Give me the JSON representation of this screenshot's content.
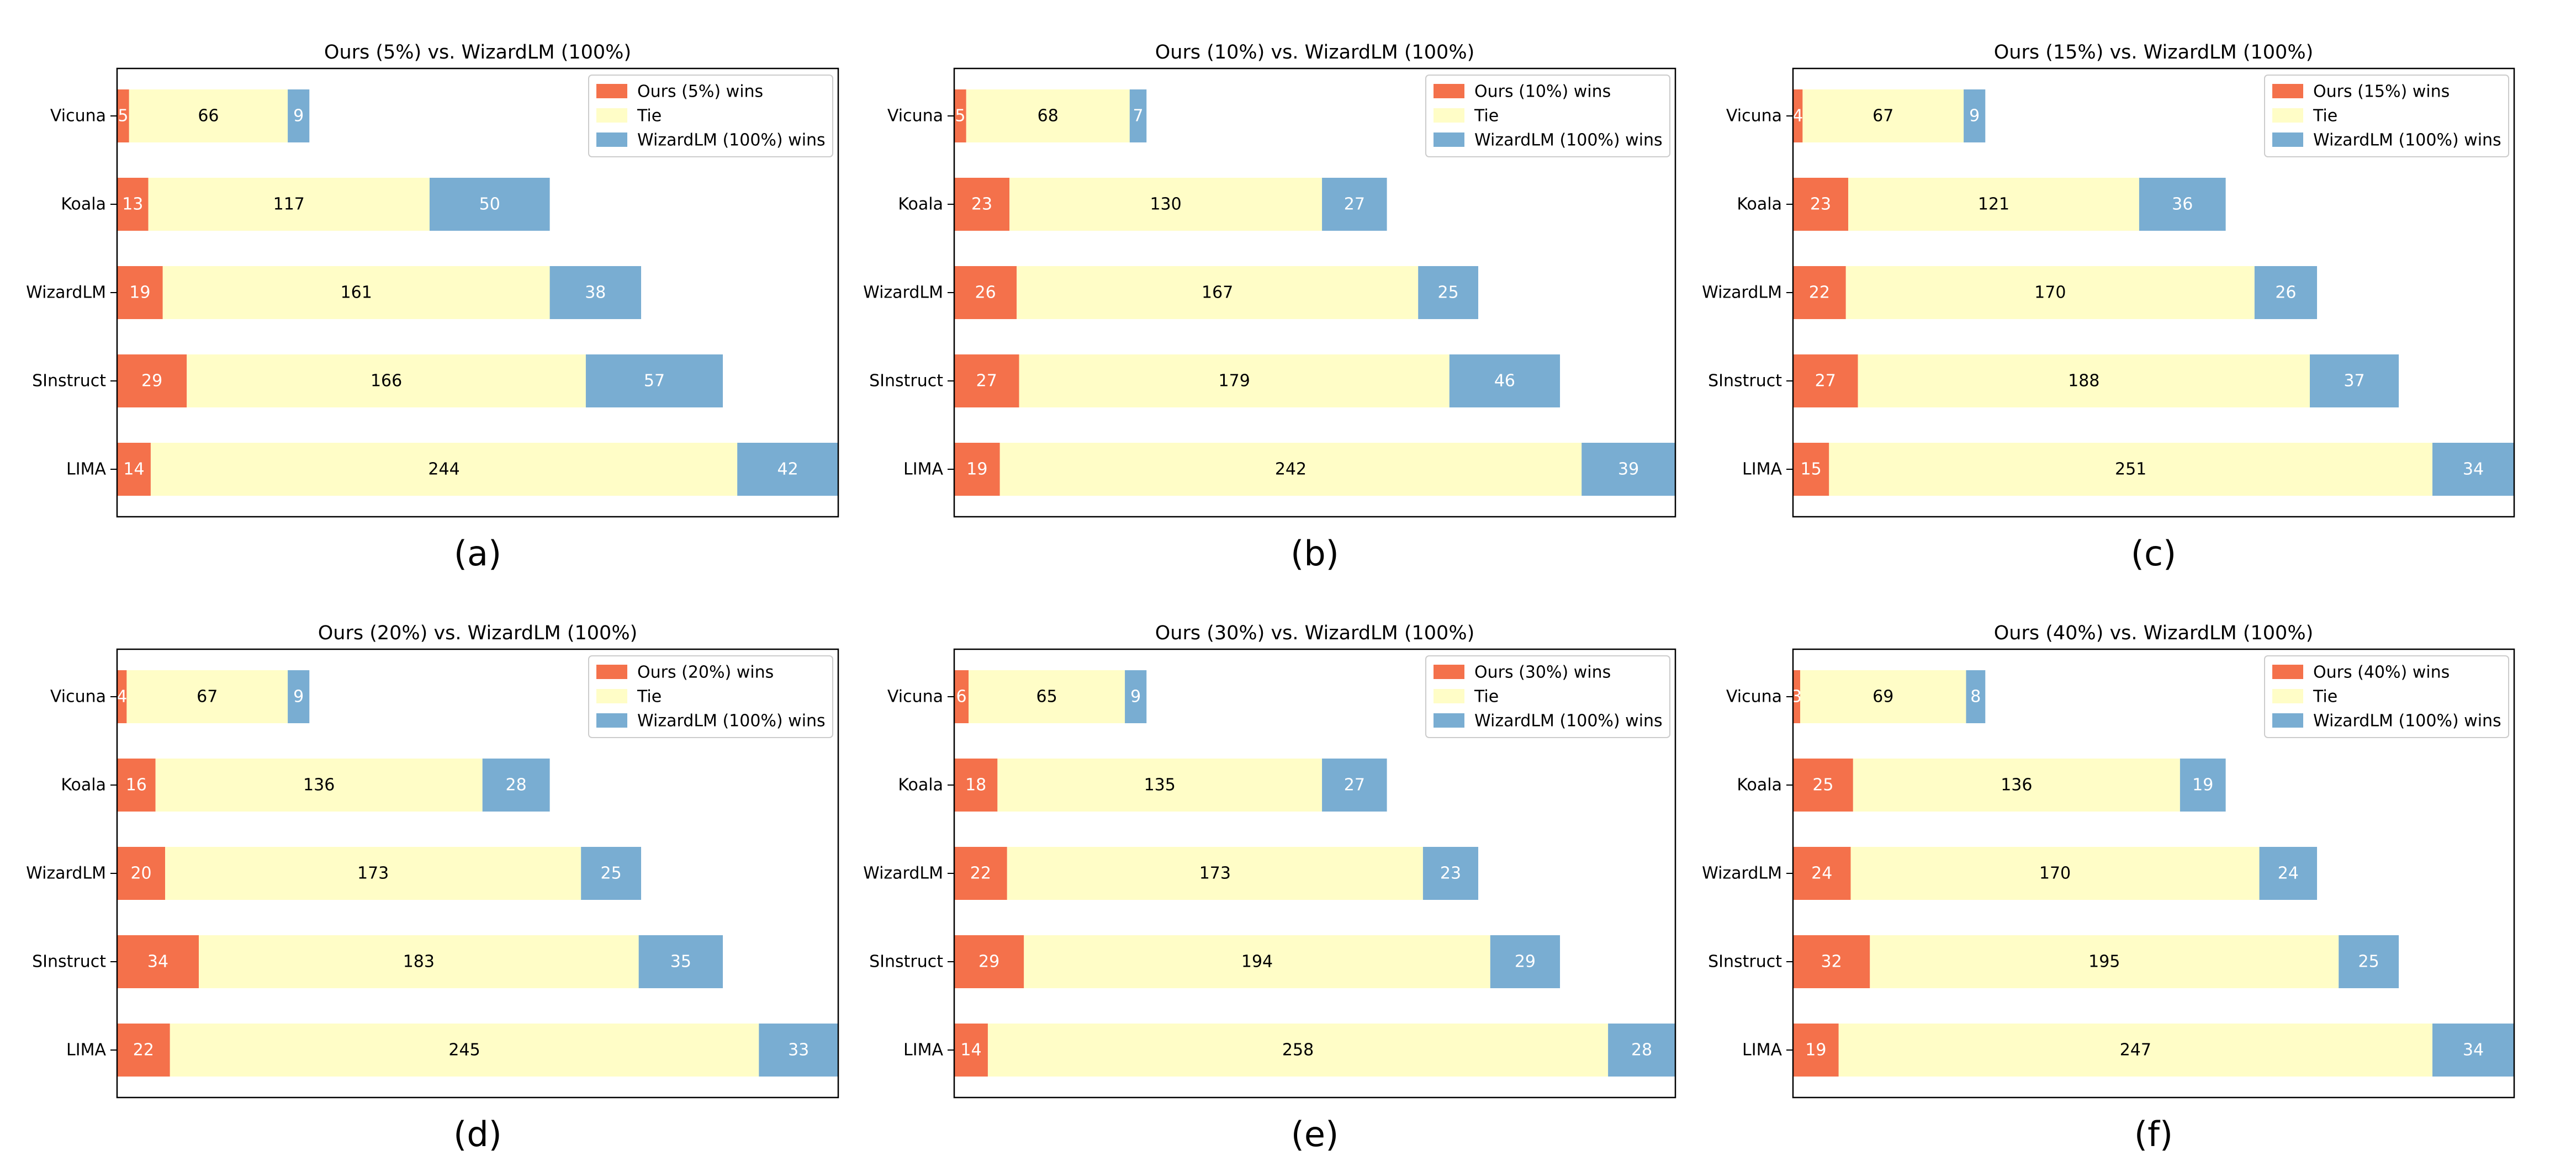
{
  "colors": {
    "ours": "#F4714B",
    "tie": "#FFFDC7",
    "wizard": "#79ADD2",
    "axis": "#000000"
  },
  "chart_data": [
    {
      "type": "bar",
      "orientation": "horizontal",
      "stacked": true,
      "title": "Ours (5%) vs. WizardLM (100%)",
      "caption": "(a)",
      "categories": [
        "Vicuna",
        "Koala",
        "WizardLM",
        "SInstruct",
        "LIMA"
      ],
      "series": [
        {
          "name": "Ours (5%) wins",
          "values": [
            5,
            13,
            19,
            29,
            14
          ]
        },
        {
          "name": "Tie",
          "values": [
            66,
            117,
            161,
            166,
            244
          ]
        },
        {
          "name": "WizardLM (100%) wins",
          "values": [
            9,
            50,
            38,
            57,
            42
          ]
        }
      ],
      "xlim": [
        0,
        300
      ],
      "grid": false,
      "legend": "top-right"
    },
    {
      "type": "bar",
      "orientation": "horizontal",
      "stacked": true,
      "title": "Ours (10%) vs. WizardLM (100%)",
      "caption": "(b)",
      "categories": [
        "Vicuna",
        "Koala",
        "WizardLM",
        "SInstruct",
        "LIMA"
      ],
      "series": [
        {
          "name": "Ours (10%) wins",
          "values": [
            5,
            23,
            26,
            27,
            19
          ]
        },
        {
          "name": "Tie",
          "values": [
            68,
            130,
            167,
            179,
            242
          ]
        },
        {
          "name": "WizardLM (100%) wins",
          "values": [
            7,
            27,
            25,
            46,
            39
          ]
        }
      ],
      "xlim": [
        0,
        300
      ],
      "grid": false,
      "legend": "top-right"
    },
    {
      "type": "bar",
      "orientation": "horizontal",
      "stacked": true,
      "title": "Ours (15%) vs. WizardLM (100%)",
      "caption": "(c)",
      "categories": [
        "Vicuna",
        "Koala",
        "WizardLM",
        "SInstruct",
        "LIMA"
      ],
      "series": [
        {
          "name": "Ours (15%) wins",
          "values": [
            4,
            23,
            22,
            27,
            15
          ]
        },
        {
          "name": "Tie",
          "values": [
            67,
            121,
            170,
            188,
            251
          ]
        },
        {
          "name": "WizardLM (100%) wins",
          "values": [
            9,
            36,
            26,
            37,
            34
          ]
        }
      ],
      "xlim": [
        0,
        300
      ],
      "grid": false,
      "legend": "top-right"
    },
    {
      "type": "bar",
      "orientation": "horizontal",
      "stacked": true,
      "title": "Ours (20%) vs. WizardLM (100%)",
      "caption": "(d)",
      "categories": [
        "Vicuna",
        "Koala",
        "WizardLM",
        "SInstruct",
        "LIMA"
      ],
      "series": [
        {
          "name": "Ours (20%) wins",
          "values": [
            4,
            16,
            20,
            34,
            22
          ]
        },
        {
          "name": "Tie",
          "values": [
            67,
            136,
            173,
            183,
            245
          ]
        },
        {
          "name": "WizardLM (100%) wins",
          "values": [
            9,
            28,
            25,
            35,
            33
          ]
        }
      ],
      "xlim": [
        0,
        300
      ],
      "grid": false,
      "legend": "top-right"
    },
    {
      "type": "bar",
      "orientation": "horizontal",
      "stacked": true,
      "title": "Ours (30%) vs. WizardLM (100%)",
      "caption": "(e)",
      "categories": [
        "Vicuna",
        "Koala",
        "WizardLM",
        "SInstruct",
        "LIMA"
      ],
      "series": [
        {
          "name": "Ours (30%) wins",
          "values": [
            6,
            18,
            22,
            29,
            14
          ]
        },
        {
          "name": "Tie",
          "values": [
            65,
            135,
            173,
            194,
            258
          ]
        },
        {
          "name": "WizardLM (100%) wins",
          "values": [
            9,
            27,
            23,
            29,
            28
          ]
        }
      ],
      "xlim": [
        0,
        300
      ],
      "grid": false,
      "legend": "top-right"
    },
    {
      "type": "bar",
      "orientation": "horizontal",
      "stacked": true,
      "title": "Ours (40%) vs. WizardLM (100%)",
      "caption": "(f)",
      "categories": [
        "Vicuna",
        "Koala",
        "WizardLM",
        "SInstruct",
        "LIMA"
      ],
      "series": [
        {
          "name": "Ours (40%) wins",
          "values": [
            3,
            25,
            24,
            32,
            19
          ]
        },
        {
          "name": "Tie",
          "values": [
            69,
            136,
            170,
            195,
            247
          ]
        },
        {
          "name": "WizardLM (100%) wins",
          "values": [
            8,
            19,
            24,
            25,
            34
          ]
        }
      ],
      "xlim": [
        0,
        300
      ],
      "grid": false,
      "legend": "top-right"
    }
  ]
}
